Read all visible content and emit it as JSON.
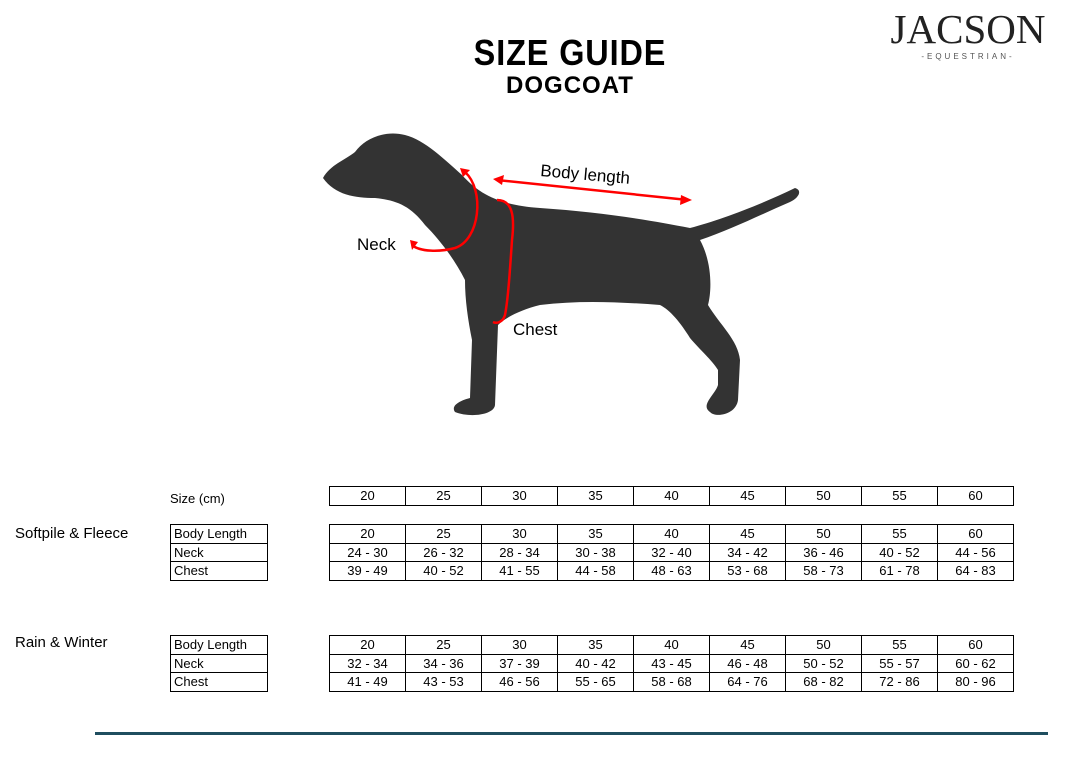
{
  "header": {
    "title": "SIZE GUIDE",
    "subtitle": "DOGCOAT"
  },
  "logo": {
    "name": "JACSON",
    "tagline": "-EQUESTRIAN-"
  },
  "diagram": {
    "labels": {
      "body_length": "Body length",
      "neck": "Neck",
      "chest": "Chest"
    },
    "arrow_color": "#ff0000",
    "dog_color": "#333333"
  },
  "size_row": {
    "label": "Size (cm)",
    "values": [
      "20",
      "25",
      "30",
      "35",
      "40",
      "45",
      "50",
      "55",
      "60"
    ]
  },
  "sections": [
    {
      "name": "Softpile & Fleece",
      "rows": [
        {
          "label": "Body Length",
          "values": [
            "20",
            "25",
            "30",
            "35",
            "40",
            "45",
            "50",
            "55",
            "60"
          ]
        },
        {
          "label": "Neck",
          "values": [
            "24 - 30",
            "26 - 32",
            "28 - 34",
            "30 - 38",
            "32 - 40",
            "34 - 42",
            "36 - 46",
            "40 - 52",
            "44 - 56"
          ]
        },
        {
          "label": "Chest",
          "values": [
            "39 - 49",
            "40 - 52",
            "41 - 55",
            "44 - 58",
            "48 - 63",
            "53 - 68",
            "58 - 73",
            "61 - 78",
            "64 - 83"
          ]
        }
      ]
    },
    {
      "name": "Rain & Winter",
      "rows": [
        {
          "label": "Body Length",
          "values": [
            "20",
            "25",
            "30",
            "35",
            "40",
            "45",
            "50",
            "55",
            "60"
          ]
        },
        {
          "label": "Neck",
          "values": [
            "32 - 34",
            "34 - 36",
            "37 - 39",
            "40 - 42",
            "43 - 45",
            "46 - 48",
            "50 - 52",
            "55 - 57",
            "60 - 62"
          ]
        },
        {
          "label": "Chest",
          "values": [
            "41 - 49",
            "43 - 53",
            "46 - 56",
            "55 - 65",
            "58 - 68",
            "64 - 76",
            "68 - 82",
            "72 - 86",
            "80 - 96"
          ]
        }
      ]
    }
  ],
  "footer": {
    "line_color": "#1f4e5f"
  }
}
